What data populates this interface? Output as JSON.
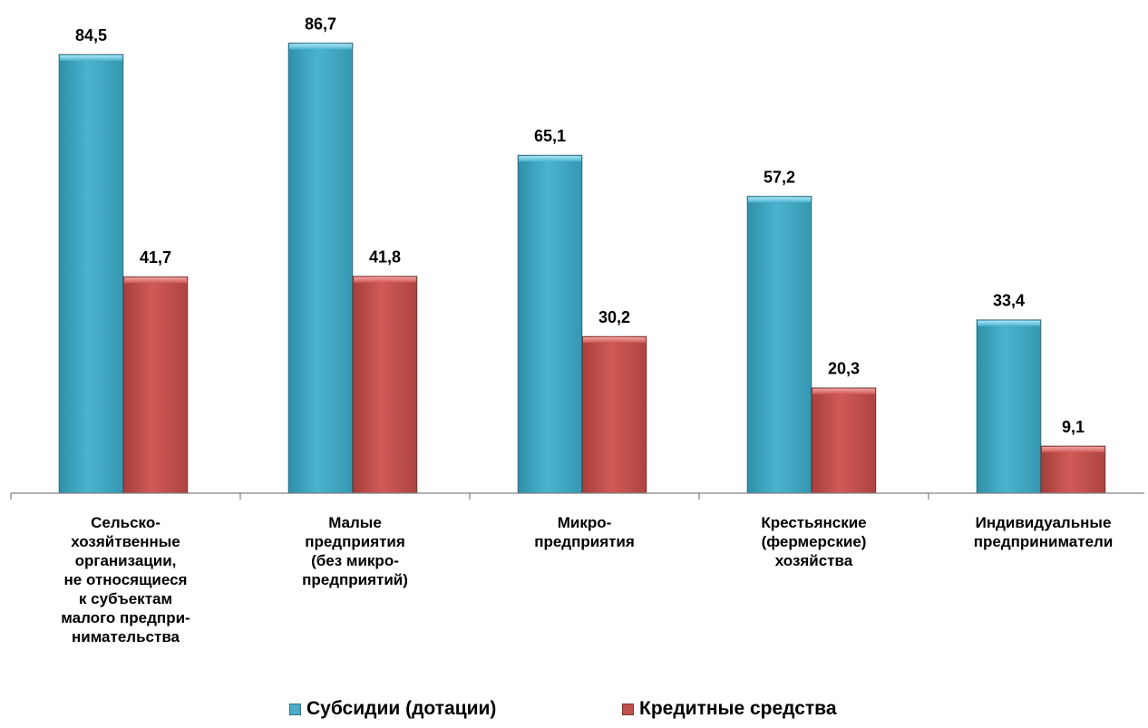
{
  "chart_data": {
    "type": "bar",
    "title": "",
    "xlabel": "",
    "ylabel": "",
    "ylim": [
      0,
      100
    ],
    "grid": false,
    "legend_position": "bottom",
    "categories": [
      "Сельско-\nхозяйтвенные\nорганизации,\nне относящиеся\nк субъектам\nмалого предпри-\nнимательства",
      "Малые\nпредприятия\n(без микро-\nпредприятий)",
      "Микро-\nпредприятия",
      "Крестьянские\n(фермерские)\nхозяйства",
      "Индивидуальные\nпредприниматели"
    ],
    "series": [
      {
        "name": "Субсидии (дотации)",
        "color": "#4bacc6",
        "values": [
          84.5,
          86.7,
          65.1,
          57.2,
          33.4
        ],
        "labels": [
          "84,5",
          "86,7",
          "65,1",
          "57,2",
          "33,4"
        ]
      },
      {
        "name": "Кредитные средства",
        "color": "#c0504d",
        "values": [
          41.7,
          41.8,
          30.2,
          20.3,
          9.1
        ],
        "labels": [
          "41,7",
          "41,8",
          "30,2",
          "20,3",
          "9,1"
        ]
      }
    ]
  }
}
